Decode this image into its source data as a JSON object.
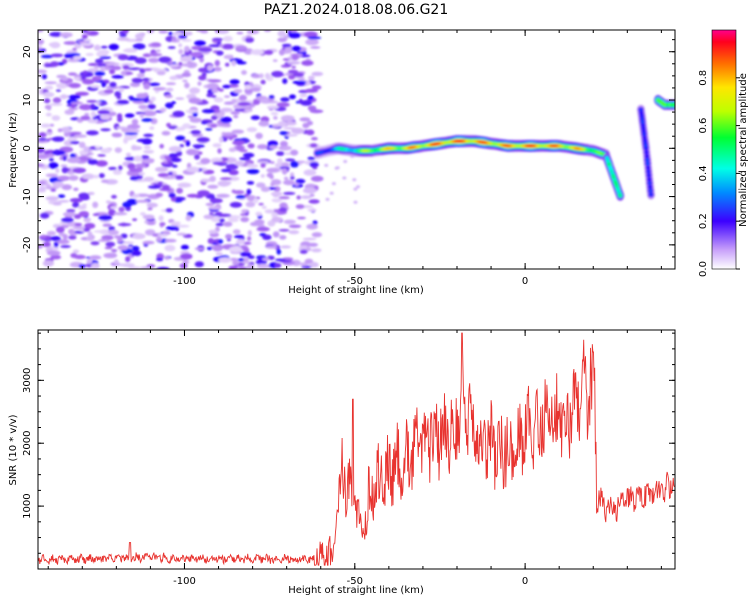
{
  "title": "PAZ1.2024.018.08.06.G21",
  "chart_data": [
    {
      "type": "heatmap",
      "xlabel": "Height of straight line (km)",
      "ylabel": "Frequency (Hz)",
      "xlim": [
        -143,
        44
      ],
      "ylim": [
        -25,
        24.5
      ],
      "xticks": [
        -100,
        -50,
        0
      ],
      "yticks": [
        -20,
        -10,
        0,
        10,
        20
      ],
      "colorbar": {
        "label": "Normalized spectral amplitude",
        "range": [
          0.0,
          1.0
        ],
        "ticks": [
          0.0,
          0.2,
          0.4,
          0.6,
          0.8
        ],
        "colormap": "gist_rainbow"
      },
      "noise_region_x": [
        -143,
        -61
      ],
      "ridge": {
        "x": [
          -61,
          -55,
          -50,
          -45,
          -40,
          -35,
          -30,
          -25,
          -20,
          -15,
          -10,
          -5,
          0,
          5,
          10,
          15,
          20,
          24
        ],
        "y": [
          -1.0,
          0.0,
          -0.5,
          -0.5,
          0.0,
          0.0,
          0.5,
          1.0,
          1.5,
          1.5,
          1.0,
          0.5,
          0.5,
          0.5,
          0.5,
          0.0,
          -0.5,
          -1.5
        ],
        "amplitude": [
          0.3,
          0.45,
          0.55,
          0.7,
          0.75,
          0.8,
          0.85,
          0.9,
          0.92,
          0.9,
          0.85,
          0.85,
          0.9,
          0.88,
          0.85,
          0.8,
          0.7,
          0.5
        ]
      },
      "tail_segments": [
        {
          "x": [
            24,
            26,
            28
          ],
          "y": [
            -2,
            -6,
            -10
          ],
          "amplitude": 0.5
        },
        {
          "x": [
            34,
            35.5,
            37
          ],
          "y": [
            8,
            0,
            -10
          ],
          "amplitude": 0.3
        },
        {
          "x": [
            39,
            41,
            44
          ],
          "y": [
            10,
            9,
            9
          ],
          "amplitude": 0.6
        }
      ]
    },
    {
      "type": "line",
      "xlabel": "Height of straight line (km)",
      "ylabel": "SNR (10 * v/v)",
      "xlim": [
        -143,
        44
      ],
      "ylim": [
        0,
        3800
      ],
      "xticks": [
        -100,
        -50,
        0
      ],
      "yticks": [
        1000,
        2000,
        3000
      ],
      "color": "#e8332f",
      "trend": {
        "x": [
          -143,
          -120,
          -110,
          -100,
          -80,
          -62,
          -56,
          -54,
          -52,
          -50,
          -48,
          -45,
          -40,
          -35,
          -30,
          -25,
          -20,
          -18,
          -15,
          -10,
          -5,
          0,
          5,
          10,
          15,
          19,
          20.5,
          21,
          25,
          30,
          35,
          40,
          44
        ],
        "y": [
          150,
          170,
          190,
          160,
          160,
          160,
          250,
          1600,
          1400,
          1200,
          600,
          1300,
          1500,
          1800,
          2000,
          2200,
          2300,
          2500,
          2200,
          2000,
          1900,
          2200,
          2300,
          2400,
          2600,
          3000,
          2900,
          1200,
          900,
          1100,
          1200,
          1250,
          1300
        ]
      },
      "noise_amplitude": 300,
      "spikes": [
        {
          "x": -18.5,
          "y": 3750
        },
        {
          "x": 20,
          "y": 3450
        },
        {
          "x": -50.5,
          "y": 2700
        },
        {
          "x": -116,
          "y": 420
        }
      ]
    }
  ]
}
